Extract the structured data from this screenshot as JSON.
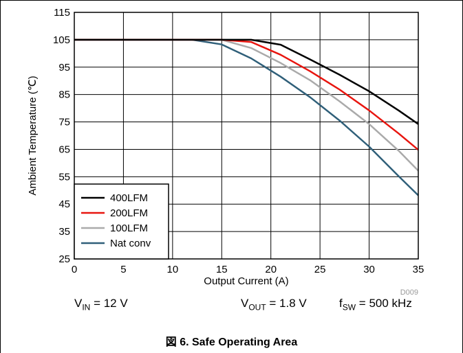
{
  "chart_data": {
    "type": "line",
    "ylabel": "Ambient Temperature (℃)",
    "xlabel": "Output Current (A)",
    "xlim": [
      0,
      35
    ],
    "ylim": [
      25,
      115
    ],
    "xticks": [
      0,
      5,
      10,
      15,
      20,
      25,
      30,
      35
    ],
    "yticks": [
      25,
      35,
      45,
      55,
      65,
      75,
      85,
      95,
      105,
      115
    ],
    "grid": true,
    "legend_position": "bottom-left",
    "figure_id": "D009",
    "series": [
      {
        "name": "400LFM",
        "color": "#000000",
        "x": [
          0,
          12,
          15,
          18,
          21,
          24,
          27,
          30,
          33,
          35
        ],
        "y": [
          105,
          105,
          105,
          105,
          103.2,
          97.8,
          92.2,
          86.2,
          79.2,
          74.2
        ]
      },
      {
        "name": "200LFM",
        "color": "#e8150f",
        "x": [
          0,
          12,
          15,
          18,
          21,
          24,
          27,
          30,
          33,
          35
        ],
        "y": [
          105,
          105,
          105,
          104.2,
          99.5,
          93.5,
          86.8,
          79.2,
          70.8,
          64.8
        ]
      },
      {
        "name": "100LFM",
        "color": "#aaaaaa",
        "x": [
          0,
          12,
          15,
          18,
          21,
          24,
          27,
          30,
          33,
          35
        ],
        "y": [
          105,
          105,
          105,
          102,
          96.5,
          90.2,
          82.5,
          74.2,
          64.5,
          57.2
        ]
      },
      {
        "name": "Nat conv",
        "color": "#2f5f79",
        "x": [
          0,
          12,
          15,
          18,
          21,
          24,
          27,
          30,
          33,
          35
        ],
        "y": [
          105,
          105,
          103.3,
          98.2,
          91.5,
          84,
          75.5,
          66,
          55.2,
          48.2
        ]
      }
    ]
  },
  "conditions": {
    "vin": {
      "main": "V",
      "sub": "IN",
      "rest": " = 12 V"
    },
    "vout": {
      "main": "V",
      "sub": "OUT",
      "rest": " = 1.8 V"
    },
    "fsw": {
      "main": "f",
      "sub": "SW",
      "rest": " = 500 kHz"
    }
  },
  "caption": "図 6. Safe Operating Area"
}
